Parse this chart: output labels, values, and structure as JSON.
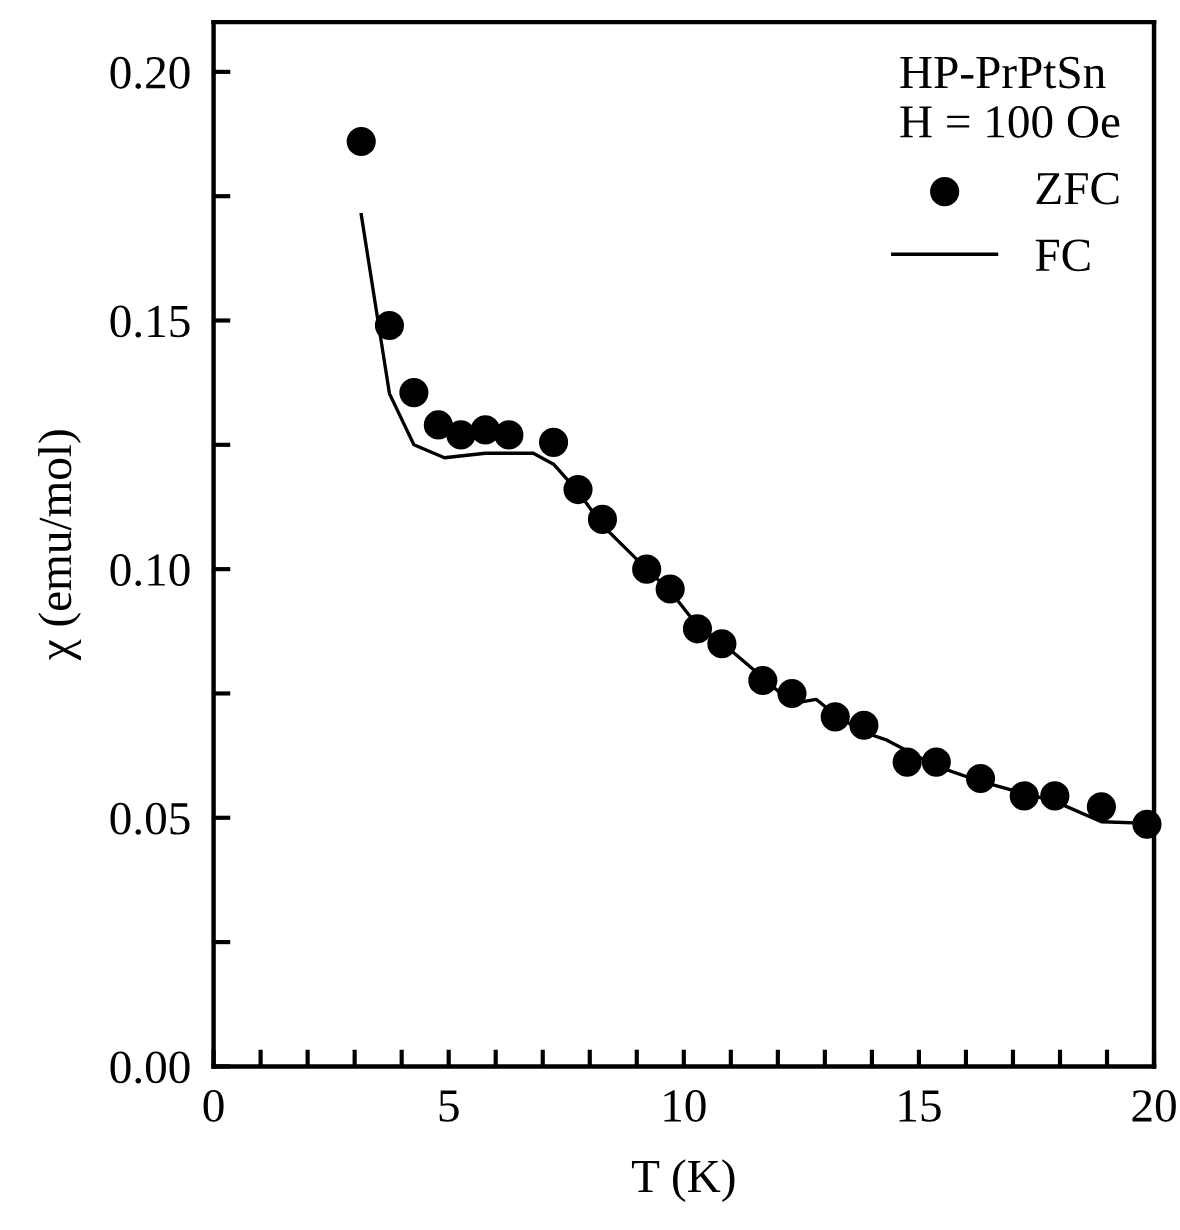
{
  "chart_data": {
    "type": "scatter",
    "xlabel": "T (K)",
    "ylabel": "χ (emu/mol)",
    "legend_title": "HP-PrPtSn\nH = 100 Oe",
    "legend": "top right",
    "grid": false,
    "xlim": [
      0,
      20
    ],
    "ylim": [
      0,
      0.21
    ],
    "xticks": [
      0,
      {
        "value": 1,
        "label": null
      },
      {
        "value": 2,
        "label": null
      },
      {
        "value": 3,
        "label": null
      },
      {
        "value": 4,
        "label": null
      },
      5,
      {
        "value": 6,
        "label": null
      },
      {
        "value": 7,
        "label": null
      },
      {
        "value": 8,
        "label": null
      },
      {
        "value": 9,
        "label": null
      },
      10,
      {
        "value": 11,
        "label": null
      },
      {
        "value": 12,
        "label": null
      },
      {
        "value": 13,
        "label": null
      },
      {
        "value": 14,
        "label": null
      },
      15,
      {
        "value": 16,
        "label": null
      },
      {
        "value": 17,
        "label": null
      },
      {
        "value": 18,
        "label": null
      },
      {
        "value": 19,
        "label": null
      },
      20
    ],
    "yticks": [
      {
        "value": 0,
        "label": "0.00"
      },
      {
        "value": 0.025,
        "label": null
      },
      {
        "value": 0.05,
        "label": "0.05"
      },
      {
        "value": 0.075,
        "label": null
      },
      {
        "value": 0.1,
        "label": "0.10"
      },
      {
        "value": 0.125,
        "label": null
      },
      {
        "value": 0.15,
        "label": "0.15"
      },
      {
        "value": 0.175,
        "label": null
      },
      {
        "value": 0.2,
        "label": "0.20"
      }
    ],
    "series": [
      {
        "name": "ZFC",
        "marker": "circle",
        "color": "#000000",
        "x": [
          3.14,
          3.74,
          4.26,
          4.78,
          5.26,
          5.78,
          6.28,
          7.23,
          7.75,
          8.27,
          9.21,
          9.71,
          10.29,
          10.81,
          11.68,
          12.3,
          13.22,
          13.83,
          14.75,
          15.37,
          16.31,
          17.24,
          17.89,
          18.88,
          19.85
        ],
        "values": [
          0.186,
          0.149,
          0.1355,
          0.129,
          0.127,
          0.128,
          0.127,
          0.1255,
          0.116,
          0.11,
          0.1,
          0.096,
          0.088,
          0.085,
          0.0776,
          0.075,
          0.0703,
          0.0686,
          0.0612,
          0.0612,
          0.0579,
          0.0544,
          0.0544,
          0.0522,
          0.0487
        ]
      },
      {
        "name": "FC",
        "type": "line",
        "marker": "none",
        "line_style": "solid",
        "color": "#000000",
        "x": [
          3.14,
          3.74,
          4.26,
          4.91,
          5.78,
          6.8,
          7.23,
          7.75,
          8.27,
          9.21,
          9.71,
          10.29,
          10.81,
          11.68,
          12.3,
          12.82,
          13.22,
          13.83,
          14.32,
          15.37,
          16.31,
          17.24,
          17.89,
          18.88,
          19.85
        ],
        "values": [
          0.1713,
          0.1353,
          0.125,
          0.1224,
          0.1233,
          0.1233,
          0.1211,
          0.1156,
          0.1088,
          0.1,
          0.0956,
          0.0886,
          0.0852,
          0.0782,
          0.073,
          0.0738,
          0.0707,
          0.0672,
          0.0656,
          0.0604,
          0.0573,
          0.0549,
          0.0533,
          0.0492,
          0.0489
        ]
      }
    ]
  }
}
